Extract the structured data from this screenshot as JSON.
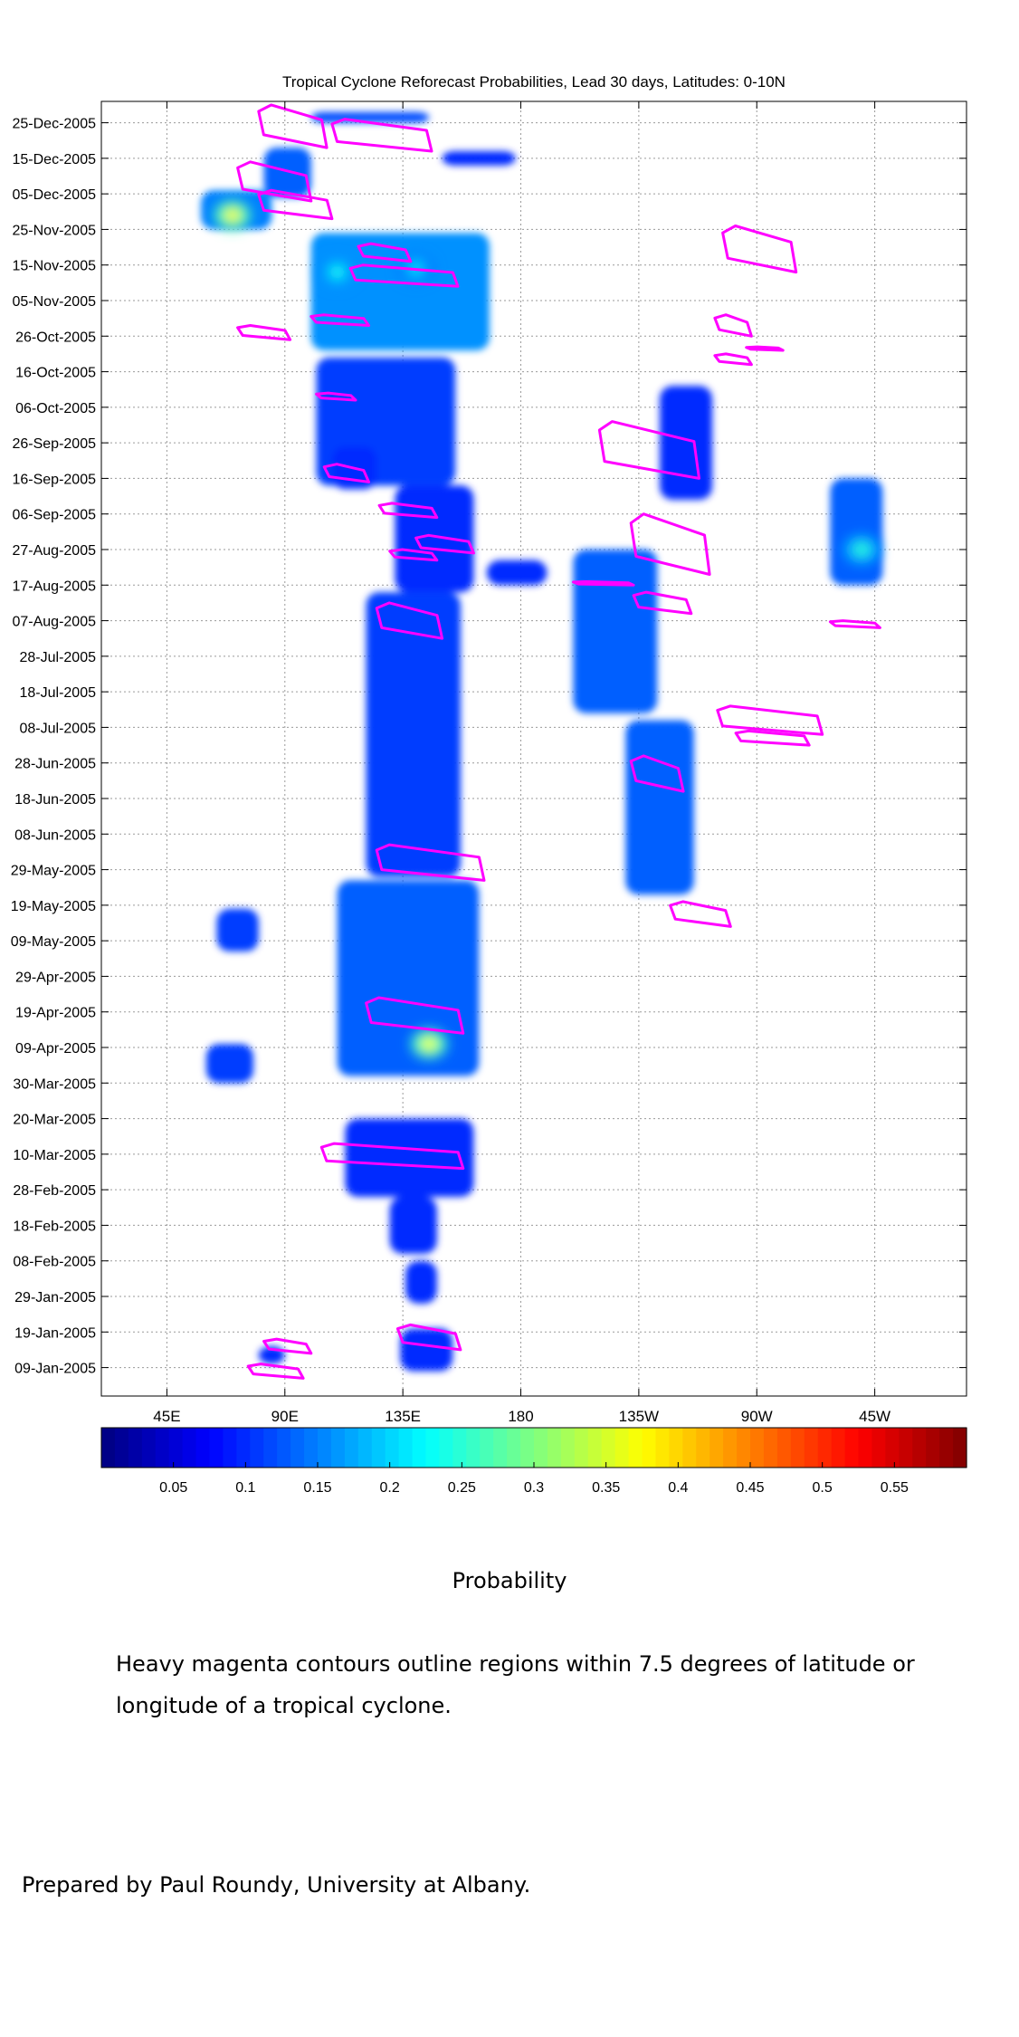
{
  "chart_data": {
    "type": "heatmap",
    "title": "Tropical Cyclone Reforecast Probabilities, Lead 30 days, Latitudes: 0-10N",
    "x_axis": {
      "ticks": [
        "45E",
        "90E",
        "135E",
        "180",
        "135W",
        "90W",
        "45W"
      ],
      "tick_values": [
        45,
        90,
        135,
        180,
        225,
        270,
        315
      ],
      "range": [
        20,
        350
      ],
      "units": "degrees longitude"
    },
    "y_axis": {
      "ticks": [
        "25-Dec-2005",
        "15-Dec-2005",
        "05-Dec-2005",
        "25-Nov-2005",
        "15-Nov-2005",
        "05-Nov-2005",
        "26-Oct-2005",
        "16-Oct-2005",
        "06-Oct-2005",
        "26-Sep-2005",
        "16-Sep-2005",
        "06-Sep-2005",
        "27-Aug-2005",
        "17-Aug-2005",
        "07-Aug-2005",
        "28-Jul-2005",
        "18-Jul-2005",
        "08-Jul-2005",
        "28-Jun-2005",
        "18-Jun-2005",
        "08-Jun-2005",
        "29-May-2005",
        "19-May-2005",
        "09-May-2005",
        "29-Apr-2005",
        "19-Apr-2005",
        "09-Apr-2005",
        "30-Mar-2005",
        "20-Mar-2005",
        "10-Mar-2005",
        "28-Feb-2005",
        "18-Feb-2005",
        "08-Feb-2005",
        "29-Jan-2005",
        "19-Jan-2005",
        "09-Jan-2005"
      ],
      "range": [
        "2005-01-01",
        "2005-12-31"
      ]
    },
    "grid": true,
    "colorbar": {
      "ticks": [
        "0.05",
        "0.1",
        "0.15",
        "0.2",
        "0.25",
        "0.3",
        "0.35",
        "0.4",
        "0.45",
        "0.5",
        "0.55"
      ],
      "tick_values": [
        0.05,
        0.1,
        0.15,
        0.2,
        0.25,
        0.3,
        0.35,
        0.4,
        0.45,
        0.5,
        0.55
      ],
      "range": [
        0,
        0.6
      ],
      "colormap": "jet",
      "label": "Probability"
    },
    "contour_color": "#ff00ff",
    "probability_regions": [
      {
        "lon": [
          100,
          145
        ],
        "dates": [
          "2005-12-25",
          "2005-12-28"
        ],
        "p": 0.12
      },
      {
        "lon": [
          150,
          178
        ],
        "dates": [
          "2005-12-13",
          "2005-12-17"
        ],
        "p": 0.1
      },
      {
        "lon": [
          82,
          100
        ],
        "dates": [
          "2005-12-04",
          "2005-12-18"
        ],
        "p": 0.13
      },
      {
        "lon": [
          58,
          85
        ],
        "dates": [
          "2005-11-25",
          "2005-12-06"
        ],
        "p": 0.15
      },
      {
        "lon": [
          100,
          168
        ],
        "dates": [
          "2005-10-22",
          "2005-11-24"
        ],
        "p": 0.16
      },
      {
        "lon": [
          102,
          155
        ],
        "dates": [
          "2005-09-14",
          "2005-10-20"
        ],
        "p": 0.11
      },
      {
        "lon": [
          108,
          125
        ],
        "dates": [
          "2005-09-13",
          "2005-09-25"
        ],
        "p": 0.1
      },
      {
        "lon": [
          132,
          162
        ],
        "dates": [
          "2005-08-15",
          "2005-09-14"
        ],
        "p": 0.1
      },
      {
        "lon": [
          167,
          190
        ],
        "dates": [
          "2005-08-17",
          "2005-08-24"
        ],
        "p": 0.1
      },
      {
        "lon": [
          200,
          232
        ],
        "dates": [
          "2005-07-12",
          "2005-08-27"
        ],
        "p": 0.13
      },
      {
        "lon": [
          233,
          253
        ],
        "dates": [
          "2005-09-10",
          "2005-10-12"
        ],
        "p": 0.1
      },
      {
        "lon": [
          298,
          318
        ],
        "dates": [
          "2005-08-17",
          "2005-09-16"
        ],
        "p": 0.13
      },
      {
        "lon": [
          121,
          157
        ],
        "dates": [
          "2005-05-27",
          "2005-08-15"
        ],
        "p": 0.11
      },
      {
        "lon": [
          220,
          246
        ],
        "dates": [
          "2005-05-22",
          "2005-07-10"
        ],
        "p": 0.13
      },
      {
        "lon": [
          110,
          164
        ],
        "dates": [
          "2005-04-01",
          "2005-05-26"
        ],
        "p": 0.13
      },
      {
        "lon": [
          64,
          80
        ],
        "dates": [
          "2005-05-06",
          "2005-05-18"
        ],
        "p": 0.11
      },
      {
        "lon": [
          60,
          78
        ],
        "dates": [
          "2005-03-30",
          "2005-04-10"
        ],
        "p": 0.11
      },
      {
        "lon": [
          113,
          162
        ],
        "dates": [
          "2005-02-26",
          "2005-03-20"
        ],
        "p": 0.1
      },
      {
        "lon": [
          130,
          148
        ],
        "dates": [
          "2005-02-10",
          "2005-02-26"
        ],
        "p": 0.1
      },
      {
        "lon": [
          136,
          148
        ],
        "dates": [
          "2005-01-27",
          "2005-02-08"
        ],
        "p": 0.1
      },
      {
        "lon": [
          134,
          154
        ],
        "dates": [
          "2005-01-08",
          "2005-01-20"
        ],
        "p": 0.1
      },
      {
        "lon": [
          80,
          90
        ],
        "dates": [
          "2005-01-10",
          "2005-01-15"
        ],
        "p": 0.1
      }
    ],
    "probability_maxima": [
      {
        "lon": 70,
        "date": "2005-11-29",
        "p": 0.38
      },
      {
        "lon": 145,
        "date": "2005-04-10",
        "p": 0.37
      },
      {
        "lon": 110,
        "date": "2005-11-13",
        "p": 0.23
      },
      {
        "lon": 140,
        "date": "2005-11-14",
        "p": 0.21
      },
      {
        "lon": 310,
        "date": "2005-08-27",
        "p": 0.25
      }
    ],
    "cyclone_contours": [
      {
        "lon": [
          80,
          106
        ],
        "dates": [
          "2005-12-18",
          "2005-12-30"
        ]
      },
      {
        "lon": [
          108,
          146
        ],
        "dates": [
          "2005-12-17",
          "2005-12-26"
        ]
      },
      {
        "lon": [
          72,
          100
        ],
        "dates": [
          "2005-12-03",
          "2005-12-14"
        ]
      },
      {
        "lon": [
          80,
          108
        ],
        "dates": [
          "2005-11-28",
          "2005-12-06"
        ]
      },
      {
        "lon": [
          118,
          138
        ],
        "dates": [
          "2005-11-16",
          "2005-11-21"
        ]
      },
      {
        "lon": [
          115,
          156
        ],
        "dates": [
          "2005-11-09",
          "2005-11-15"
        ]
      },
      {
        "lon": [
          100,
          122
        ],
        "dates": [
          "2005-10-29",
          "2005-11-01"
        ]
      },
      {
        "lon": [
          72,
          92
        ],
        "dates": [
          "2005-10-25",
          "2005-10-29"
        ]
      },
      {
        "lon": [
          257,
          285
        ],
        "dates": [
          "2005-11-13",
          "2005-11-26"
        ]
      },
      {
        "lon": [
          254,
          268
        ],
        "dates": [
          "2005-10-26",
          "2005-11-01"
        ]
      },
      {
        "lon": [
          266,
          280
        ],
        "dates": [
          "2005-10-22",
          "2005-10-23"
        ]
      },
      {
        "lon": [
          254,
          268
        ],
        "dates": [
          "2005-10-18",
          "2005-10-21"
        ]
      },
      {
        "lon": [
          102,
          117
        ],
        "dates": [
          "2005-10-08",
          "2005-10-10"
        ]
      },
      {
        "lon": [
          210,
          248
        ],
        "dates": [
          "2005-09-16",
          "2005-10-02"
        ]
      },
      {
        "lon": [
          105,
          122
        ],
        "dates": [
          "2005-09-15",
          "2005-09-20"
        ]
      },
      {
        "lon": [
          126,
          148
        ],
        "dates": [
          "2005-09-05",
          "2005-09-09"
        ]
      },
      {
        "lon": [
          140,
          162
        ],
        "dates": [
          "2005-08-26",
          "2005-08-31"
        ]
      },
      {
        "lon": [
          130,
          148
        ],
        "dates": [
          "2005-08-24",
          "2005-08-27"
        ]
      },
      {
        "lon": [
          222,
          252
        ],
        "dates": [
          "2005-08-20",
          "2005-09-06"
        ]
      },
      {
        "lon": [
          200,
          223
        ],
        "dates": [
          "2005-08-17",
          "2005-08-18"
        ]
      },
      {
        "lon": [
          223,
          245
        ],
        "dates": [
          "2005-08-09",
          "2005-08-15"
        ]
      },
      {
        "lon": [
          298,
          317
        ],
        "dates": [
          "2005-08-05",
          "2005-08-07"
        ]
      },
      {
        "lon": [
          125,
          150
        ],
        "dates": [
          "2005-08-02",
          "2005-08-12"
        ]
      },
      {
        "lon": [
          255,
          295
        ],
        "dates": [
          "2005-07-06",
          "2005-07-14"
        ]
      },
      {
        "lon": [
          262,
          290
        ],
        "dates": [
          "2005-07-03",
          "2005-07-07"
        ]
      },
      {
        "lon": [
          222,
          242
        ],
        "dates": [
          "2005-06-20",
          "2005-06-30"
        ]
      },
      {
        "lon": [
          125,
          166
        ],
        "dates": [
          "2005-05-26",
          "2005-06-05"
        ]
      },
      {
        "lon": [
          237,
          260
        ],
        "dates": [
          "2005-05-13",
          "2005-05-20"
        ]
      },
      {
        "lon": [
          121,
          158
        ],
        "dates": [
          "2005-04-13",
          "2005-04-23"
        ]
      },
      {
        "lon": [
          104,
          158
        ],
        "dates": [
          "2005-03-06",
          "2005-03-13"
        ]
      },
      {
        "lon": [
          133,
          157
        ],
        "dates": [
          "2005-01-14",
          "2005-01-21"
        ]
      },
      {
        "lon": [
          82,
          100
        ],
        "dates": [
          "2005-01-13",
          "2005-01-17"
        ]
      },
      {
        "lon": [
          76,
          97
        ],
        "dates": [
          "2005-01-06",
          "2005-01-10"
        ]
      }
    ]
  },
  "captions": {
    "probability": "Probability",
    "note": "Heavy magenta contours outline regions within 7.5 degrees of latitude or longitude of a tropical cyclone.",
    "credit": "Prepared by Paul Roundy, University at Albany."
  }
}
